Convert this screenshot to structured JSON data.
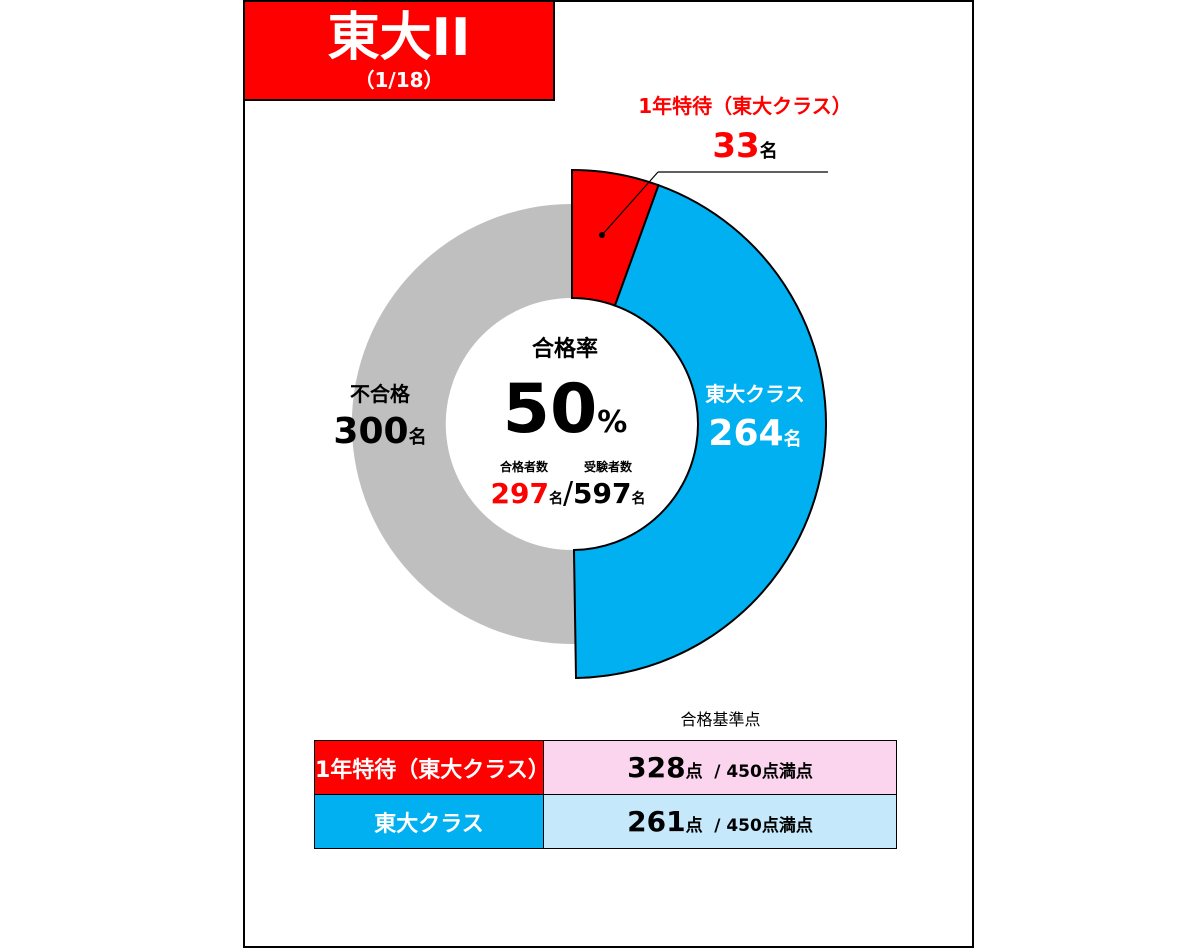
{
  "header": {
    "title": "東大II",
    "subtitle": "（1/18）"
  },
  "colors": {
    "red": "#ff0000",
    "blue": "#00b0f0",
    "gray": "#bfbfbf",
    "pink": "#fbd5ee",
    "lightblue": "#c5e8fb"
  },
  "chart_data": {
    "type": "pie",
    "slices": [
      {
        "name": "1年特待（東大クラス）",
        "value": 33,
        "unit": "名",
        "color": "#ff0000"
      },
      {
        "name": "東大クラス",
        "value": 264,
        "unit": "名",
        "color": "#00b0f0"
      },
      {
        "name": "不合格",
        "value": 300,
        "unit": "名",
        "color": "#bfbfbf"
      }
    ],
    "center": {
      "rate_label": "合格率",
      "rate_value": "50",
      "rate_unit": "%",
      "passed_label": "合格者数",
      "passed_value": "297",
      "examinees_label": "受験者数",
      "examinees_value": "597",
      "unit": "名",
      "separator": "/"
    }
  },
  "labels": {
    "tokutai_name": "1年特待（東大クラス）",
    "tokutai_value": "33",
    "toudai_name": "東大クラス",
    "toudai_value": "264",
    "fail_name": "不合格",
    "fail_value": "300",
    "unit": "名"
  },
  "criteria": {
    "title": "合格基準点",
    "rows": [
      {
        "label": "1年特待（東大クラス）",
        "score": "328",
        "unit": "点",
        "max": "/ 450点満点"
      },
      {
        "label": "東大クラス",
        "score": "261",
        "unit": "点",
        "max": "/ 450点満点"
      }
    ]
  }
}
